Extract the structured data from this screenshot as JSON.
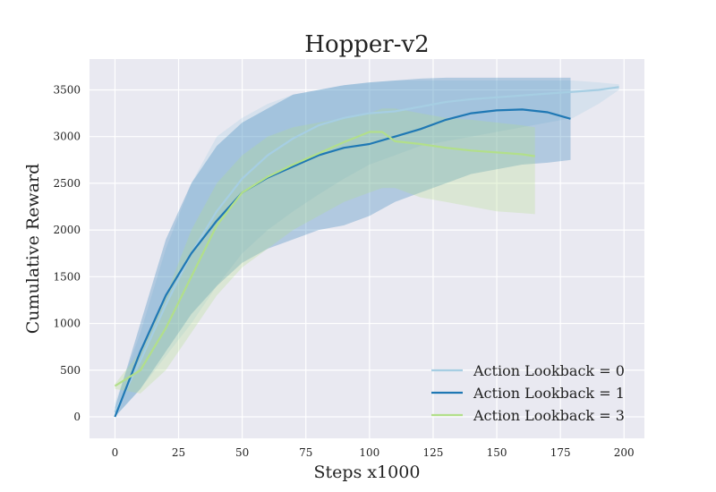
{
  "chart_data": {
    "type": "line",
    "title": "Hopper-v2",
    "xlabel": "Steps x1000",
    "ylabel": "Cumulative Reward",
    "xlim": [
      -10,
      208
    ],
    "ylim": [
      -230,
      3830
    ],
    "xticks": [
      0,
      25,
      50,
      75,
      100,
      125,
      150,
      175,
      200
    ],
    "yticks": [
      0,
      500,
      1000,
      1500,
      2000,
      2500,
      3000,
      3500
    ],
    "grid": true,
    "legend_position": "bottom-right",
    "series": [
      {
        "name": "Action Lookback = 0",
        "color": "#a6cee3",
        "x": [
          0,
          10,
          20,
          30,
          40,
          50,
          60,
          70,
          80,
          90,
          100,
          110,
          120,
          130,
          140,
          150,
          160,
          170,
          180,
          190,
          198
        ],
        "y": [
          50,
          600,
          1200,
          1750,
          2200,
          2550,
          2800,
          2980,
          3120,
          3200,
          3250,
          3270,
          3320,
          3370,
          3400,
          3420,
          3440,
          3460,
          3480,
          3500,
          3530
        ],
        "lower": [
          0,
          300,
          650,
          1000,
          1400,
          1750,
          2000,
          2200,
          2380,
          2550,
          2700,
          2800,
          2900,
          2950,
          3000,
          3050,
          3100,
          3150,
          3200,
          3350,
          3500
        ],
        "upper": [
          150,
          900,
          1800,
          2500,
          3000,
          3200,
          3350,
          3450,
          3500,
          3550,
          3580,
          3600,
          3600,
          3600,
          3600,
          3600,
          3600,
          3600,
          3600,
          3580,
          3560
        ]
      },
      {
        "name": "Action Lookback = 1",
        "color": "#1f78b4",
        "x": [
          0,
          10,
          20,
          30,
          40,
          50,
          60,
          70,
          80,
          90,
          100,
          110,
          120,
          130,
          140,
          150,
          160,
          170,
          179
        ],
        "y": [
          0,
          700,
          1300,
          1750,
          2100,
          2400,
          2560,
          2680,
          2800,
          2880,
          2920,
          3000,
          3080,
          3180,
          3250,
          3280,
          3290,
          3260,
          3190
        ],
        "lower": [
          0,
          300,
          700,
          1100,
          1400,
          1650,
          1800,
          1900,
          2000,
          2050,
          2150,
          2300,
          2400,
          2500,
          2600,
          2650,
          2700,
          2720,
          2750
        ],
        "upper": [
          100,
          1000,
          1900,
          2500,
          2900,
          3150,
          3300,
          3450,
          3500,
          3550,
          3580,
          3600,
          3620,
          3630,
          3630,
          3630,
          3630,
          3630,
          3630
        ]
      },
      {
        "name": "Action Lookback = 3",
        "color": "#b2df8a",
        "x": [
          0,
          10,
          20,
          30,
          40,
          50,
          60,
          70,
          80,
          90,
          100,
          105,
          110,
          120,
          130,
          140,
          150,
          160,
          165
        ],
        "y": [
          330,
          500,
          950,
          1500,
          2050,
          2400,
          2570,
          2700,
          2820,
          2940,
          3050,
          3050,
          2950,
          2920,
          2880,
          2850,
          2830,
          2810,
          2790
        ],
        "lower": [
          300,
          250,
          500,
          900,
          1300,
          1600,
          1800,
          2000,
          2150,
          2300,
          2400,
          2450,
          2450,
          2350,
          2300,
          2250,
          2200,
          2180,
          2170
        ],
        "upper": [
          350,
          700,
          1300,
          2000,
          2500,
          2800,
          3000,
          3100,
          3150,
          3200,
          3250,
          3300,
          3300,
          3250,
          3200,
          3180,
          3150,
          3120,
          3100
        ]
      }
    ]
  },
  "colors": {
    "plot_background": "#e9e9f1",
    "grid": "#ffffff"
  }
}
